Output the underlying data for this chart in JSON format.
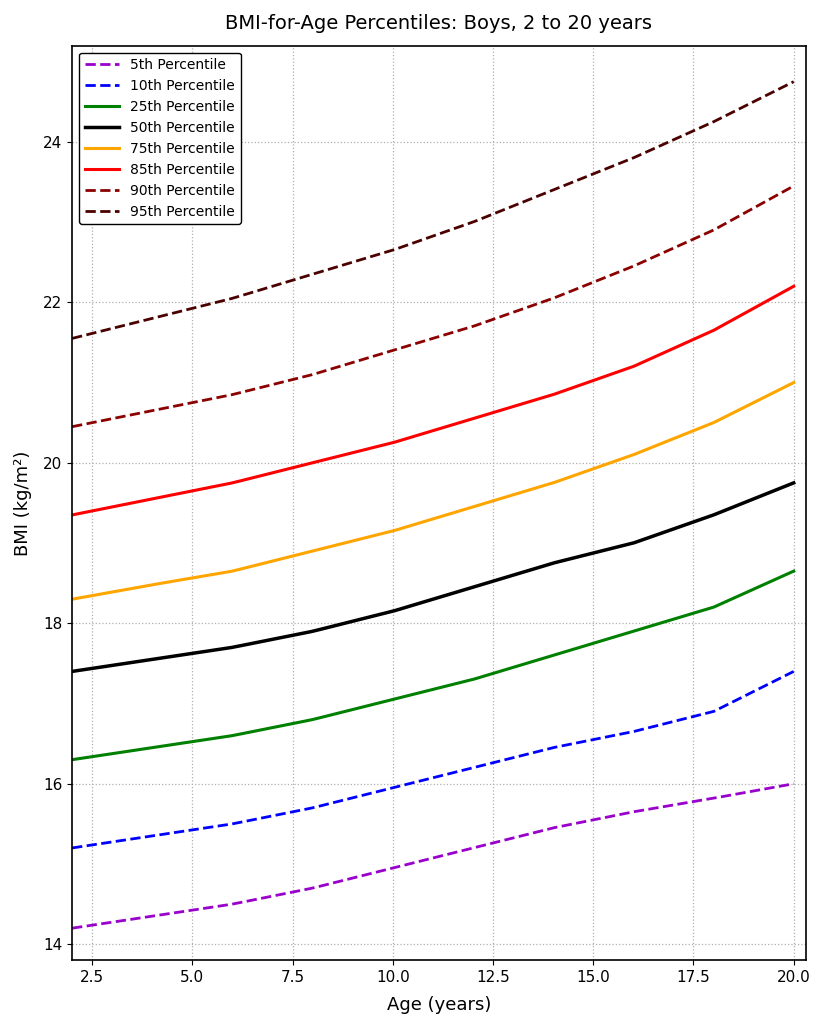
{
  "title": "BMI-for-Age Percentiles: Boys, 2 to 20 years",
  "xlabel": "Age (years)",
  "ylabel": "BMI (kg/m²)",
  "ylim": [
    13.8,
    25.2
  ],
  "xlim": [
    2,
    20.3
  ],
  "percentiles": [
    {
      "label": "5th Percentile",
      "color": "#9900CC",
      "linestyle": "dashed",
      "linewidth": 2.0,
      "y_values": [
        14.2,
        14.35,
        14.5,
        14.7,
        14.95,
        15.2,
        15.45,
        15.65,
        15.82,
        16.0
      ]
    },
    {
      "label": "10th Percentile",
      "color": "#0000FF",
      "linestyle": "dashed",
      "linewidth": 2.0,
      "y_values": [
        15.2,
        15.35,
        15.5,
        15.7,
        15.95,
        16.2,
        16.45,
        16.65,
        16.9,
        17.4
      ]
    },
    {
      "label": "25th Percentile",
      "color": "#008000",
      "linestyle": "solid",
      "linewidth": 2.2,
      "y_values": [
        16.3,
        16.45,
        16.6,
        16.8,
        17.05,
        17.3,
        17.6,
        17.9,
        18.2,
        18.65
      ]
    },
    {
      "label": "50th Percentile",
      "color": "#000000",
      "linestyle": "solid",
      "linewidth": 2.5,
      "y_values": [
        17.4,
        17.55,
        17.7,
        17.9,
        18.15,
        18.45,
        18.75,
        19.0,
        19.35,
        19.75
      ]
    },
    {
      "label": "75th Percentile",
      "color": "#FFA500",
      "linestyle": "solid",
      "linewidth": 2.2,
      "y_values": [
        18.3,
        18.48,
        18.65,
        18.9,
        19.15,
        19.45,
        19.75,
        20.1,
        20.5,
        21.0
      ]
    },
    {
      "label": "85th Percentile",
      "color": "#FF0000",
      "linestyle": "solid",
      "linewidth": 2.2,
      "y_values": [
        19.35,
        19.55,
        19.75,
        20.0,
        20.25,
        20.55,
        20.85,
        21.2,
        21.65,
        22.2
      ]
    },
    {
      "label": "90th Percentile",
      "color": "#8B0000",
      "linestyle": "dashed",
      "linewidth": 2.0,
      "y_values": [
        20.45,
        20.65,
        20.85,
        21.1,
        21.4,
        21.7,
        22.05,
        22.45,
        22.9,
        23.45
      ]
    },
    {
      "label": "95th Percentile",
      "color": "#4B0000",
      "linestyle": "dashed",
      "linewidth": 2.0,
      "y_values": [
        21.55,
        21.8,
        22.05,
        22.35,
        22.65,
        23.0,
        23.4,
        23.8,
        24.25,
        24.75
      ]
    }
  ],
  "x_points": [
    2,
    4,
    6,
    8,
    10,
    12,
    14,
    16,
    18,
    20
  ],
  "grid_color": "#b0b0b0",
  "grid_linestyle": "dotted",
  "background_color": "#ffffff",
  "legend_fontsize": 10,
  "title_fontsize": 14,
  "axis_label_fontsize": 13,
  "tick_fontsize": 11,
  "xticks": [
    2.5,
    5.0,
    7.5,
    10.0,
    12.5,
    15.0,
    17.5,
    20.0
  ],
  "yticks": [
    14,
    16,
    18,
    20,
    22,
    24
  ]
}
